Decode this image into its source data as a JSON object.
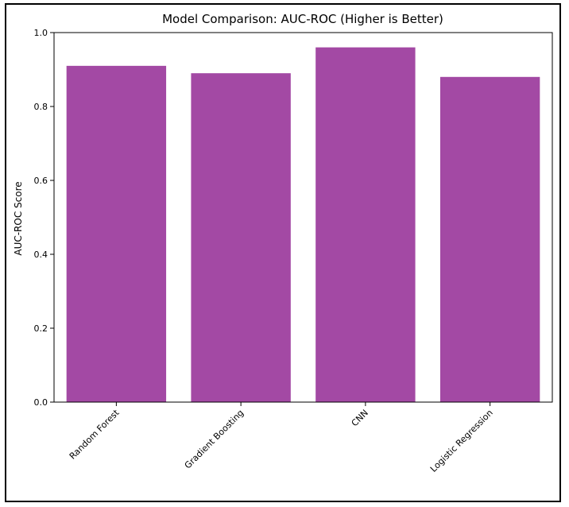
{
  "chart_data": {
    "type": "bar",
    "title": "Model Comparison: AUC-ROC (Higher is Better)",
    "xlabel": "",
    "ylabel": "AUC-ROC Score",
    "categories": [
      "Random Forest",
      "Gradient Boosting",
      "CNN",
      "Logistic Regression"
    ],
    "values": [
      0.91,
      0.89,
      0.96,
      0.88
    ],
    "ylim": [
      0,
      1.0
    ],
    "yticks": [
      "0.0",
      "0.2",
      "0.4",
      "0.6",
      "0.8",
      "1.0"
    ],
    "bar_color": "#a349a4",
    "grid": false,
    "legend": false
  }
}
